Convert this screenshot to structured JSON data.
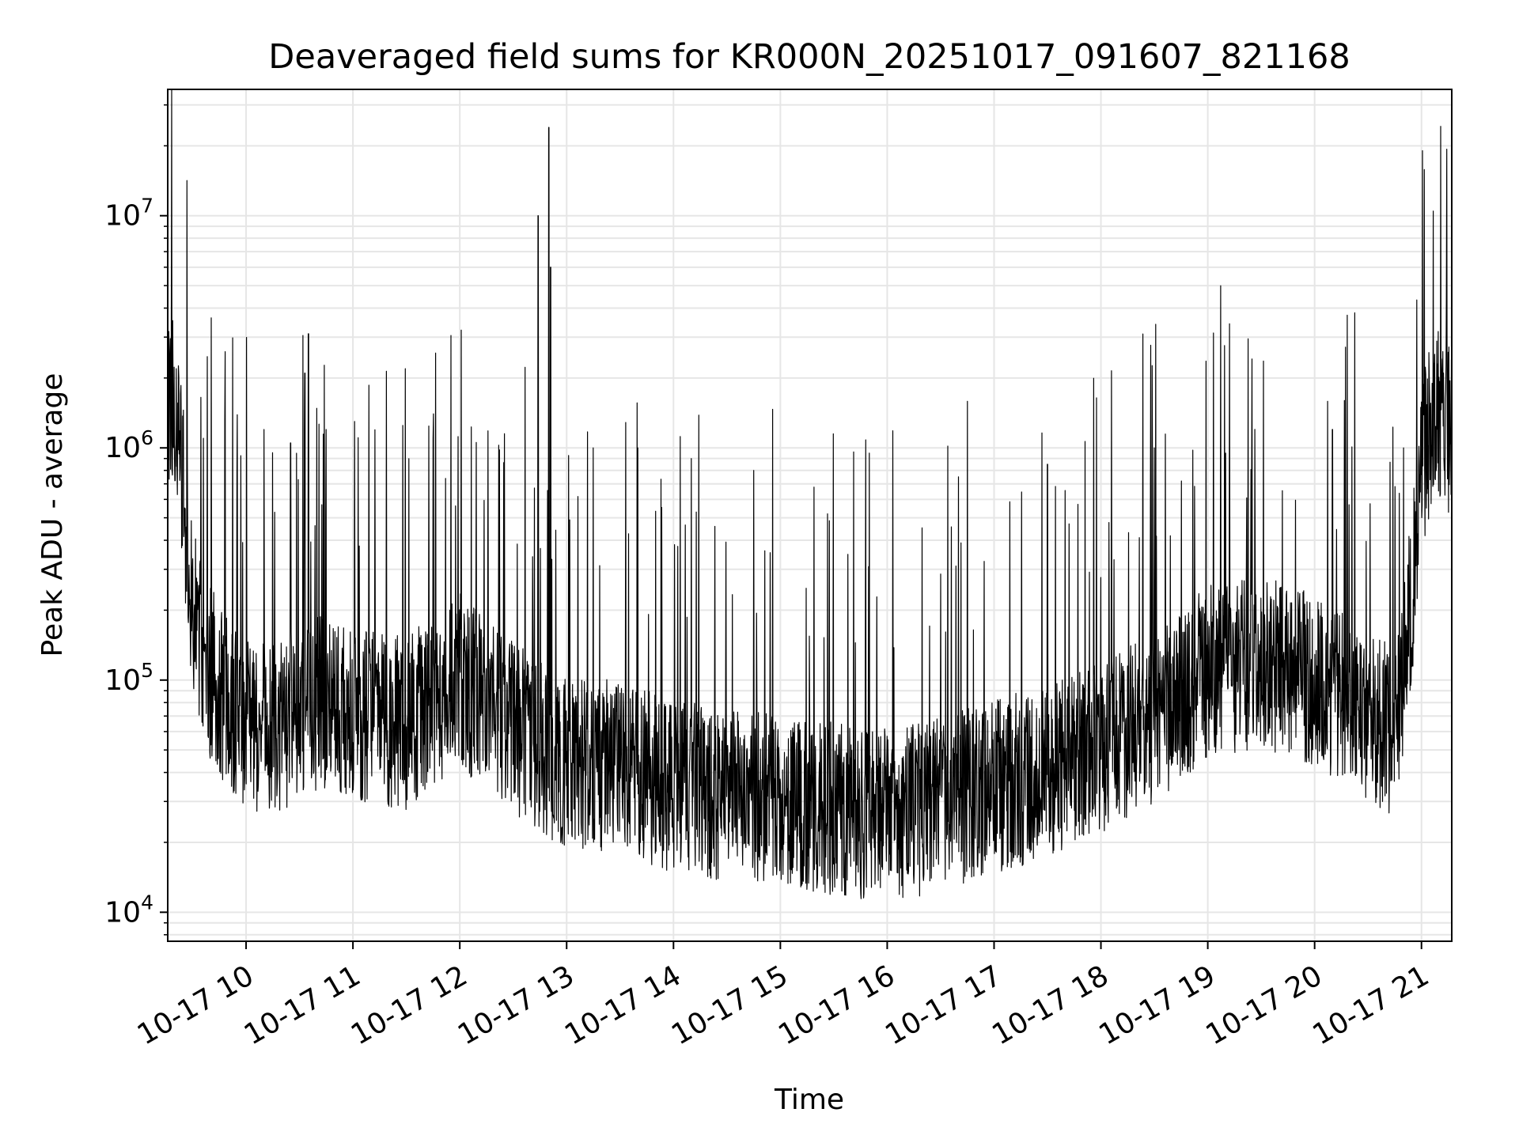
{
  "chart_data": {
    "type": "line",
    "title": "Deaveraged field sums for KR000N_20251017_091607_821168",
    "xlabel": "Time",
    "ylabel": "Peak ADU - average",
    "yscale": "log",
    "grid": true,
    "line_color": "#000000",
    "grid_color": "#e6e6e6",
    "xlim": [
      "2025-10-17 09:16",
      "2025-10-17 21:17"
    ],
    "ylim": [
      7500,
      35000000
    ],
    "x_ticks": [
      "10-17 10",
      "10-17 11",
      "10-17 12",
      "10-17 13",
      "10-17 14",
      "10-17 15",
      "10-17 16",
      "10-17 17",
      "10-17 18",
      "10-17 19",
      "10-17 20",
      "10-17 21"
    ],
    "y_ticks": [
      {
        "value": 10000,
        "base": "10",
        "exp": "4"
      },
      {
        "value": 100000,
        "base": "10",
        "exp": "5"
      },
      {
        "value": 1000000,
        "base": "10",
        "exp": "6"
      },
      {
        "value": 10000000,
        "base": "10",
        "exp": "7"
      }
    ],
    "series": [
      {
        "baseline": {
          "x": [
            "2025-10-17 09:16",
            "2025-10-17 09:20",
            "2025-10-17 09:25",
            "2025-10-17 09:30",
            "2025-10-17 09:35",
            "2025-10-17 09:45",
            "2025-10-17 10:00",
            "2025-10-17 10:20",
            "2025-10-17 10:40",
            "2025-10-17 11:00",
            "2025-10-17 11:30",
            "2025-10-17 12:00",
            "2025-10-17 12:20",
            "2025-10-17 12:40",
            "2025-10-17 12:55",
            "2025-10-17 13:00",
            "2025-10-17 13:30",
            "2025-10-17 14:00",
            "2025-10-17 14:30",
            "2025-10-17 15:00",
            "2025-10-17 15:30",
            "2025-10-17 16:00",
            "2025-10-17 16:30",
            "2025-10-17 17:00",
            "2025-10-17 17:30",
            "2025-10-17 18:00",
            "2025-10-17 18:30",
            "2025-10-17 19:00",
            "2025-10-17 19:30",
            "2025-10-17 20:00",
            "2025-10-17 20:30",
            "2025-10-17 20:45",
            "2025-10-17 20:55",
            "2025-10-17 21:00",
            "2025-10-17 21:05",
            "2025-10-17 21:10",
            "2025-10-17 21:17"
          ],
          "y": [
            1800000,
            1500000,
            600000,
            200000,
            130000,
            90000,
            62000,
            65000,
            80000,
            72000,
            65000,
            100000,
            70000,
            55000,
            45000,
            45000,
            42000,
            35000,
            32000,
            30000,
            28000,
            26000,
            29000,
            35000,
            40000,
            50000,
            70000,
            110000,
            120000,
            100000,
            70000,
            60000,
            250000,
            800000,
            1200000,
            1400000,
            1100000
          ]
        },
        "spikes": [
          {
            "x": "2025-10-17 09:36",
            "y": 1100000
          },
          {
            "x": "2025-10-17 09:48",
            "y": 1300000
          },
          {
            "x": "2025-10-17 10:10",
            "y": 1200000
          },
          {
            "x": "2025-10-17 10:25",
            "y": 1050000
          },
          {
            "x": "2025-10-17 10:33",
            "y": 2100000
          },
          {
            "x": "2025-10-17 10:35",
            "y": 3100000
          },
          {
            "x": "2025-10-17 10:45",
            "y": 1200000
          },
          {
            "x": "2025-10-17 11:01",
            "y": 1300000
          },
          {
            "x": "2025-10-17 11:28",
            "y": 1250000
          },
          {
            "x": "2025-10-17 11:45",
            "y": 1100000
          },
          {
            "x": "2025-10-17 12:25",
            "y": 1150000
          },
          {
            "x": "2025-10-17 12:44",
            "y": 10000000
          },
          {
            "x": "2025-10-17 12:50",
            "y": 24000000
          },
          {
            "x": "2025-10-17 12:51",
            "y": 6000000
          },
          {
            "x": "2025-10-17 13:15",
            "y": 1000000
          },
          {
            "x": "2025-10-17 13:40",
            "y": 1000000
          },
          {
            "x": "2025-10-17 14:10",
            "y": 900000
          },
          {
            "x": "2025-10-17 14:45",
            "y": 800000
          },
          {
            "x": "2025-10-17 15:50",
            "y": 950000
          },
          {
            "x": "2025-10-17 16:40",
            "y": 750000
          },
          {
            "x": "2025-10-17 17:30",
            "y": 850000
          },
          {
            "x": "2025-10-17 18:30",
            "y": 1000000
          },
          {
            "x": "2025-10-17 19:10",
            "y": 950000
          },
          {
            "x": "2025-10-17 20:10",
            "y": 1200000
          },
          {
            "x": "2025-10-17 20:50",
            "y": 1000000
          },
          {
            "x": "2025-10-17 21:14",
            "y": 4500000
          }
        ]
      }
    ]
  }
}
